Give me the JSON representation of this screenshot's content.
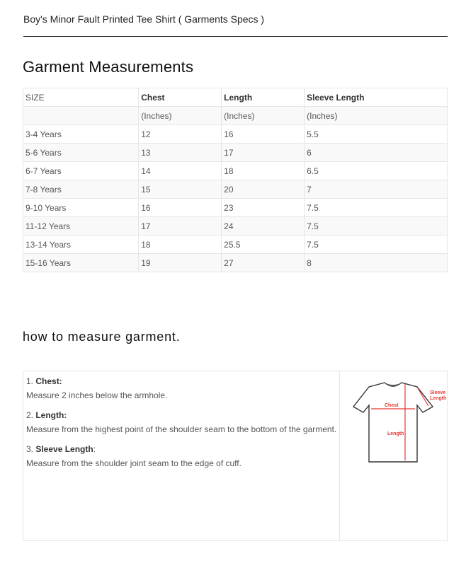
{
  "page_title": "Boy's Minor Fault Printed Tee Shirt ( Garments Specs )",
  "heading": "Garment Measurements",
  "table": {
    "headers": [
      "SIZE",
      "Chest",
      "Length",
      "Sleeve Length"
    ],
    "units": [
      "",
      "(Inches)",
      "(Inches)",
      "(Inches)"
    ],
    "rows": [
      [
        "3-4 Years",
        "12",
        "16",
        "5.5"
      ],
      [
        "5-6 Years",
        "13",
        "17",
        "6"
      ],
      [
        "6-7 Years",
        "14",
        "18",
        "6.5"
      ],
      [
        "7-8 Years",
        "15",
        "20",
        "7"
      ],
      [
        "9-10 Years",
        "16",
        "23",
        "7.5"
      ],
      [
        "11-12 Years",
        "17",
        "24",
        "7.5"
      ],
      [
        "13-14 Years",
        "18",
        "25.5",
        "7.5"
      ],
      [
        "15-16 Years",
        "19",
        "27",
        "8"
      ]
    ]
  },
  "measure": {
    "heading": "how to measure garment.",
    "items": [
      {
        "num": "1. ",
        "label": "Chest:",
        "desc": "Measure 2 inches below the armhole."
      },
      {
        "num": "2. ",
        "label": "Length:",
        "desc": "Measure from the highest point of the shoulder seam to the bottom of the garment."
      },
      {
        "num": "3. ",
        "label": "Sleeve Length",
        "suffix": ":",
        "desc": "Measure from the shoulder joint seam to the edge of cuff."
      }
    ],
    "diagram": {
      "chest": "Chest",
      "length": "Length",
      "sleeve1": "Sleeve",
      "sleeve2": "Length",
      "accent": "#e53935"
    }
  }
}
